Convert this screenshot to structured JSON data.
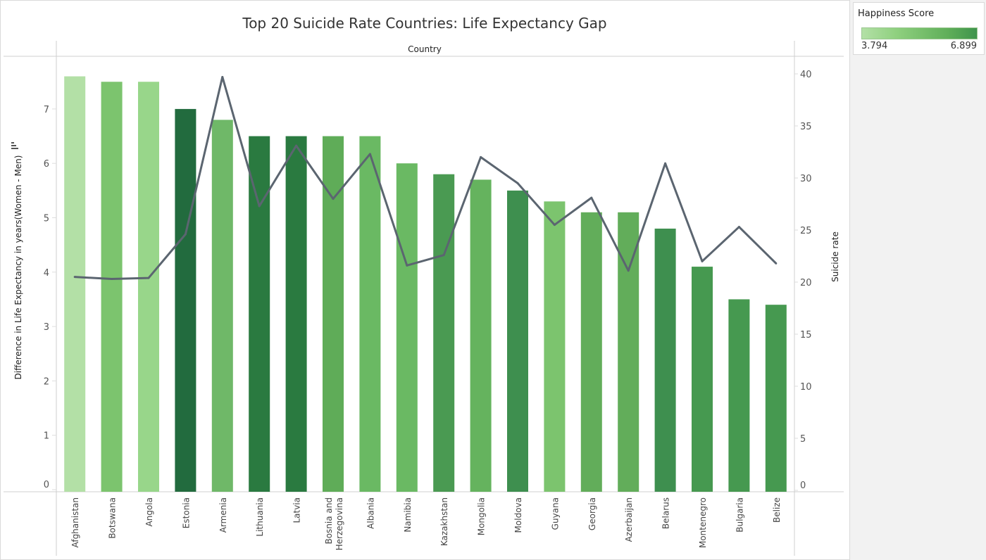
{
  "chart_data": {
    "type": "bar",
    "title": "Top 20 Suicide Rate Countries: Life Expectancy Gap",
    "column_header": "Country",
    "ylabel": "Difference in Life Expectancy in years(Women - Men)",
    "y2label": "Suicide rate",
    "ylim": [
      0,
      7.6
    ],
    "y2lim": [
      0,
      41
    ],
    "yticks": [
      0,
      1,
      2,
      3,
      4,
      5,
      6,
      7
    ],
    "y2ticks": [
      0,
      5,
      10,
      15,
      20,
      25,
      30,
      35,
      40
    ],
    "categories": [
      "Afghanistan",
      "Botswana",
      "Angola",
      "Estonia",
      "Armenia",
      "Lithuania",
      "Latvia",
      "Bosnia and Herzegovina",
      "Albania",
      "Namibia",
      "Kazakhstan",
      "Mongolia",
      "Moldova",
      "Guyana",
      "Georgia",
      "Azerbaijan",
      "Belarus",
      "Montenegro",
      "Bulgaria",
      "Belize"
    ],
    "series": [
      {
        "name": "Difference in Life Expectancy",
        "type": "bar",
        "axis": "left",
        "values": [
          7.6,
          7.5,
          7.5,
          7.0,
          6.8,
          6.5,
          6.5,
          6.5,
          6.5,
          6.0,
          5.8,
          5.7,
          5.5,
          5.3,
          5.1,
          5.1,
          4.8,
          4.1,
          3.5,
          3.4
        ],
        "colors": [
          "#b3e0a6",
          "#7cc46e",
          "#98d68a",
          "#226b3e",
          "#6fb868",
          "#2a7a40",
          "#2a7a40",
          "#5fac58",
          "#6ab963",
          "#6ab963",
          "#4a9a52",
          "#65b35e",
          "#3e8f4f",
          "#7cc46e",
          "#62ad5a",
          "#62ad5a",
          "#3e8f4f",
          "#469950",
          "#469950",
          "#469950"
        ]
      },
      {
        "name": "Suicide rate",
        "type": "line",
        "axis": "right",
        "color": "#5b6570",
        "values": [
          20.5,
          20.3,
          20.4,
          24.6,
          39.7,
          27.3,
          33.1,
          28.0,
          32.3,
          21.6,
          22.6,
          32.0,
          29.5,
          25.5,
          28.1,
          21.1,
          31.4,
          22.0,
          25.3,
          21.8
        ]
      }
    ],
    "legend": {
      "title": "Happiness Score",
      "min": "3.794",
      "max": "6.899",
      "placement": "top-right"
    }
  }
}
